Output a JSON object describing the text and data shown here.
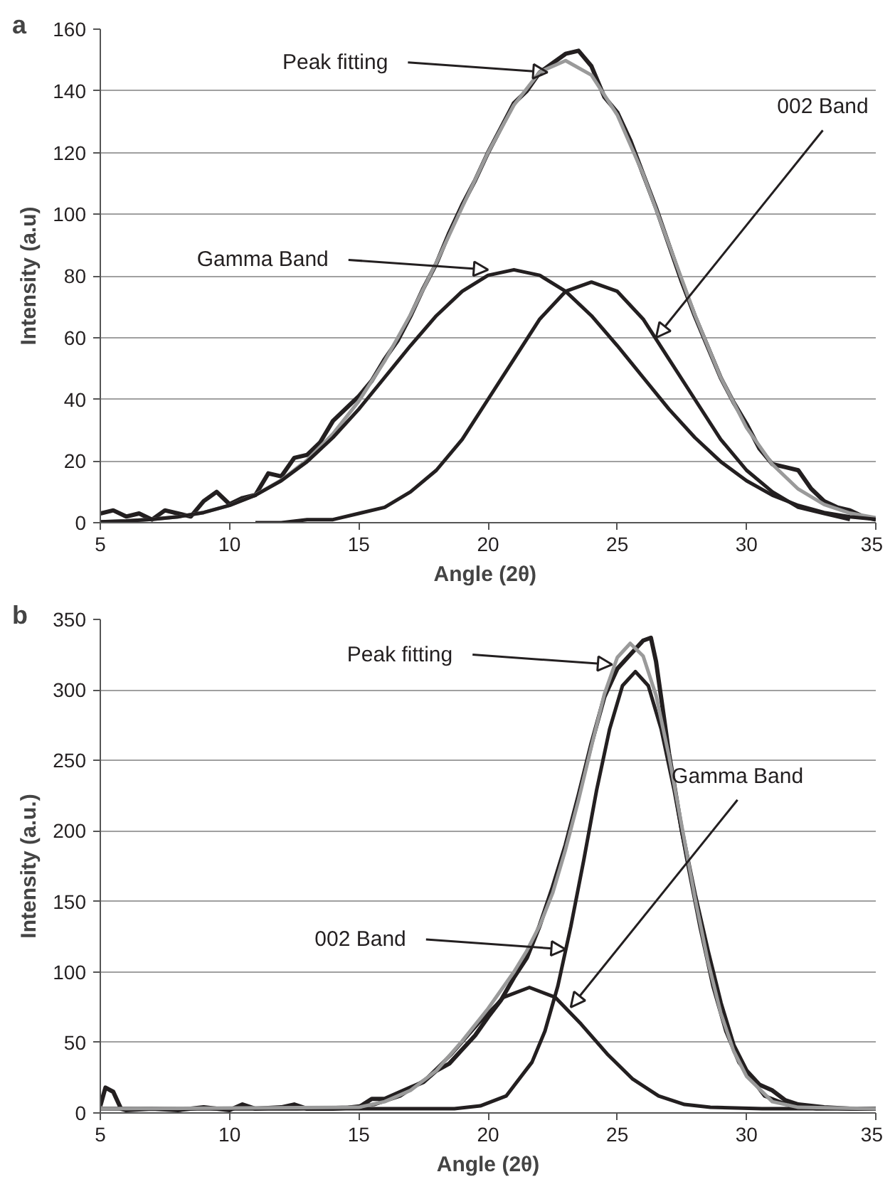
{
  "chart_data": [
    {
      "type": "line",
      "title": "a",
      "xlabel": "Angle  (2θ)",
      "ylabel": "Intensity (a.u)",
      "xlim": [
        5,
        35
      ],
      "ylim": [
        0,
        160
      ],
      "xticks": [
        5,
        10,
        15,
        20,
        25,
        30,
        35
      ],
      "yticks": [
        0,
        20,
        40,
        60,
        80,
        100,
        120,
        140,
        160
      ],
      "grid": "y",
      "series": [
        {
          "color": "#231f20",
          "x": [
            5,
            5.5,
            6,
            6.5,
            7,
            7.5,
            8,
            8.5,
            9,
            9.5,
            10,
            10.5,
            11,
            11.5,
            12,
            12.5,
            13,
            13.5,
            14,
            14.5,
            15,
            15.5,
            16,
            16.5,
            17,
            17.5,
            18,
            18.5,
            19,
            19.5,
            20,
            20.5,
            21,
            21.5,
            22,
            22.5,
            23,
            23.5,
            24,
            24.5,
            25,
            25.5,
            26,
            26.5,
            27,
            27.5,
            28,
            28.5,
            29,
            29.5,
            30,
            30.5,
            31,
            31.5,
            32,
            32.5,
            33,
            33.5,
            34,
            34.5,
            35
          ],
          "values": [
            3,
            4,
            2,
            3,
            1,
            4,
            3,
            2,
            7,
            10,
            6,
            8,
            9,
            16,
            15,
            21,
            22,
            26,
            33,
            37,
            41,
            46,
            53,
            59,
            67,
            76,
            84,
            94,
            103,
            111,
            120,
            128,
            136,
            140,
            146,
            149,
            152,
            153,
            148,
            138,
            133,
            124,
            113,
            102,
            90,
            78,
            67,
            57,
            47,
            39,
            32,
            24,
            19,
            18,
            17,
            11,
            7,
            5,
            4,
            2,
            1
          ]
        },
        {
          "color": "#9a9a9a",
          "x": [
            5,
            6,
            7,
            8,
            9,
            10,
            11,
            12,
            13,
            14,
            15,
            16,
            17,
            18,
            19,
            20,
            21,
            22,
            23,
            24,
            25,
            26,
            27,
            28,
            29,
            30,
            31,
            32,
            33,
            34,
            35
          ],
          "values": [
            0.3,
            0.6,
            1.1,
            1.9,
            3.3,
            5.6,
            9.0,
            13.8,
            20.3,
            28.8,
            39.4,
            52.4,
            67.4,
            84.3,
            102.3,
            120.0,
            135.4,
            146.1,
            149.8,
            145.1,
            132.2,
            113.0,
            90.2,
            67.4,
            47.1,
            30.8,
            18.9,
            10.9,
            5.9,
            3.1,
            1.6
          ]
        },
        {
          "color": "#231f20",
          "x": [
            5,
            6,
            7,
            8,
            9,
            10,
            11,
            12,
            13,
            14,
            15,
            16,
            17,
            18,
            19,
            20,
            21,
            22,
            23,
            24,
            25,
            26,
            27,
            28,
            29,
            30,
            31,
            32,
            33,
            34,
            35
          ],
          "values": [
            0.3,
            0.6,
            1.1,
            1.9,
            3.3,
            5.6,
            8.9,
            13.6,
            19.8,
            27.6,
            36.8,
            47.1,
            57.4,
            67.1,
            75.0,
            80.2,
            82,
            80.2,
            75.0,
            67.1,
            57.4,
            47.1,
            36.8,
            27.6,
            19.8,
            13.6,
            8.9,
            5.6,
            3.3,
            1.9,
            1.1
          ]
        },
        {
          "color": "#231f20",
          "x": [
            11,
            12,
            13,
            14,
            15,
            16,
            17,
            18,
            19,
            20,
            21,
            22,
            23,
            24,
            25,
            26,
            27,
            28,
            29,
            30,
            31,
            32,
            33,
            34
          ],
          "values": [
            0,
            0,
            1,
            1,
            3,
            5,
            10,
            17,
            27,
            40,
            53,
            66,
            75,
            78,
            75,
            66,
            53,
            40,
            27,
            17,
            10,
            5,
            3,
            1
          ]
        }
      ],
      "annotations": [
        {
          "text": "Peak fitting",
          "x": 22.3,
          "y": 146
        },
        {
          "text": "Gamma Band",
          "x": 20,
          "y": 82
        },
        {
          "text": "002 Band",
          "x": 26.5,
          "y": 60
        }
      ]
    },
    {
      "type": "line",
      "title": "b",
      "xlabel": "Angle (2θ)",
      "ylabel": "Intensity (a.u.)",
      "xlim": [
        5,
        35
      ],
      "ylim": [
        0,
        350
      ],
      "xticks": [
        5,
        10,
        15,
        20,
        25,
        30,
        35
      ],
      "yticks": [
        0,
        50,
        100,
        150,
        200,
        250,
        300,
        350
      ],
      "grid": "y",
      "series": [
        {
          "color": "#231f20",
          "x": [
            5,
            5.2,
            5.5,
            5.8,
            6,
            7,
            8,
            9,
            10,
            10.5,
            11,
            12,
            12.5,
            13,
            14,
            15,
            15.5,
            16,
            17,
            17.5,
            18,
            18.5,
            19,
            19.5,
            20,
            20.5,
            21,
            21.5,
            22,
            22.5,
            23,
            23.5,
            24,
            24.5,
            25,
            25.5,
            26,
            26.3,
            26.5,
            27,
            27.5,
            28,
            28.5,
            29,
            29.5,
            30,
            30.5,
            31,
            31.5,
            32,
            33,
            34,
            35
          ],
          "values": [
            5,
            18,
            15,
            3,
            2,
            3,
            2,
            4,
            2,
            6,
            3,
            4,
            6,
            3,
            3,
            4,
            10,
            10,
            18,
            22,
            30,
            35,
            45,
            55,
            68,
            80,
            96,
            110,
            133,
            160,
            190,
            225,
            262,
            295,
            315,
            325,
            335,
            337,
            320,
            255,
            200,
            155,
            115,
            78,
            48,
            30,
            20,
            16,
            9,
            6,
            4,
            3,
            3
          ]
        },
        {
          "color": "#231f20",
          "x": [
            5,
            12.6,
            14.6,
            15.6,
            16.6,
            17.6,
            18.6,
            19.6,
            20.6,
            21.6,
            22.6,
            23.6,
            24.6,
            25.6,
            26.6,
            27.6,
            28.6,
            30.6,
            35
          ],
          "values": [
            3,
            3,
            4,
            6,
            12,
            24,
            42,
            63,
            82,
            89,
            82,
            63,
            42,
            24,
            12,
            6,
            4,
            3,
            3
          ]
        },
        {
          "color": "#231f20",
          "x": [
            5,
            18.7,
            19.7,
            20.7,
            21.7,
            22.2,
            22.7,
            23.2,
            23.7,
            24.2,
            24.7,
            25.2,
            25.7,
            26.2,
            26.7,
            27.2,
            27.7,
            28.2,
            28.7,
            29.2,
            29.7,
            30.7,
            31.7,
            32.7,
            35
          ],
          "values": [
            3,
            3,
            5,
            12,
            36,
            58,
            90,
            132,
            179,
            229,
            272,
            303,
            313,
            303,
            272,
            229,
            179,
            132,
            90,
            58,
            36,
            12,
            5,
            3,
            3
          ]
        },
        {
          "color": "#9a9a9a",
          "x": [
            5,
            15,
            16,
            17,
            18,
            19,
            20,
            21,
            21.5,
            22,
            22.5,
            23,
            23.5,
            24,
            24.5,
            25,
            25.5,
            26,
            26.5,
            27,
            27.5,
            28,
            28.5,
            29,
            29.5,
            30,
            31,
            32,
            35
          ],
          "values": [
            3,
            4,
            8,
            16,
            30,
            51,
            74,
            100,
            115,
            133,
            156,
            187,
            222,
            260,
            297,
            323,
            333,
            324,
            296,
            253,
            203,
            153,
            108,
            71,
            44,
            26,
            8,
            4,
            3
          ]
        }
      ],
      "annotations": [
        {
          "text": "Peak fitting",
          "x": 24.8,
          "y": 318
        },
        {
          "text": "002 Band",
          "x": 23,
          "y": 116
        },
        {
          "text": "Gamma Band",
          "x": 23.2,
          "y": 75
        }
      ]
    }
  ]
}
